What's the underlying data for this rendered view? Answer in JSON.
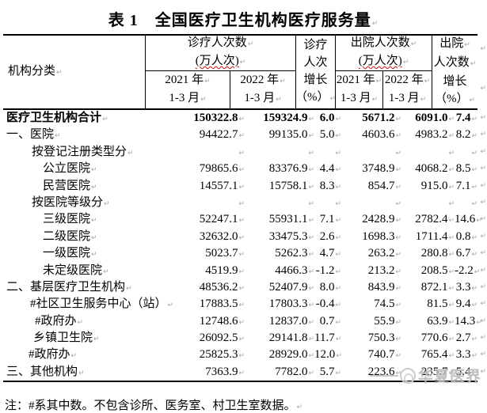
{
  "title": "表 1　全国医疗卫生机构医疗服务量",
  "header": {
    "institution": "机构分类",
    "outpatient_group": {
      "line1": "诊疗人次数",
      "line2": "(万人次)"
    },
    "outpatient_growth_lines": [
      "诊疗",
      "人次",
      "增长",
      "（%）"
    ],
    "discharge_group": {
      "line1": "出院人次数",
      "line2": "(万人次)"
    },
    "discharge_growth_lines": [
      "出院",
      "人次数",
      "增长",
      "（%）"
    ],
    "year2021": {
      "line1": "2021 年",
      "line2": "1-3 月"
    },
    "year2022": {
      "line1": "2022 年",
      "line2": "1-3 月"
    }
  },
  "rows": [
    {
      "label": "医疗卫生机构合计",
      "indent": 4,
      "bold": true,
      "values": [
        "150322.8",
        "159324.9",
        "6.0",
        "5671.2",
        "6091.0",
        "7.4"
      ]
    },
    {
      "label": "一、医院",
      "indent": 4,
      "bold": false,
      "values": [
        "94422.7",
        "99135.0",
        "5.0",
        "4603.6",
        "4983.2",
        "8.2"
      ]
    },
    {
      "label": "按登记注册类型分",
      "indent": 36,
      "bold": false,
      "values": [
        "",
        "",
        "",
        "",
        "",
        ""
      ]
    },
    {
      "label": "公立医院",
      "indent": 50,
      "bold": false,
      "values": [
        "79865.6",
        "83376.9",
        "4.4",
        "3748.9",
        "4068.2",
        "8.5"
      ]
    },
    {
      "label": "民营医院",
      "indent": 50,
      "bold": false,
      "values": [
        "14557.1",
        "15758.1",
        "8.3",
        "854.7",
        "915.0",
        "7.1"
      ]
    },
    {
      "label": "按医院等级分",
      "indent": 36,
      "bold": false,
      "values": [
        "",
        "",
        "",
        "",
        "",
        ""
      ]
    },
    {
      "label": "三级医院",
      "indent": 50,
      "bold": false,
      "values": [
        "52247.1",
        "55931.1",
        "7.1",
        "2428.9",
        "2782.4",
        "14.6"
      ]
    },
    {
      "label": "二级医院",
      "indent": 50,
      "bold": false,
      "values": [
        "32632.0",
        "33475.3",
        "2.6",
        "1698.3",
        "1711.4",
        "0.8"
      ]
    },
    {
      "label": "一级医院",
      "indent": 50,
      "bold": false,
      "values": [
        "5023.7",
        "5262.3",
        "4.7",
        "263.2",
        "280.8",
        "6.7"
      ]
    },
    {
      "label": "未定级医院",
      "indent": 50,
      "bold": false,
      "values": [
        "4519.9",
        "4466.3",
        "-1.2",
        "213.2",
        "208.5",
        "-2.2"
      ]
    },
    {
      "label": "二、基层医疗卫生机构",
      "indent": 4,
      "bold": false,
      "values": [
        "48536.2",
        "52407.9",
        "8.0",
        "843.9",
        "872.1",
        "3.3"
      ]
    },
    {
      "label": "#社区卫生服务中心（站）",
      "indent": 34,
      "bold": false,
      "values": [
        "17883.5",
        "17803.3",
        "-0.4",
        "74.5",
        "81.5",
        "9.4"
      ]
    },
    {
      "label": "#政府办",
      "indent": 40,
      "bold": false,
      "values": [
        "12748.6",
        "12837.0",
        "0.7",
        "55.9",
        "63.9",
        "14.3"
      ]
    },
    {
      "label": "乡镇卫生院",
      "indent": 38,
      "bold": false,
      "values": [
        "26092.5",
        "29141.8",
        "11.7",
        "750.3",
        "770.6",
        "2.7"
      ]
    },
    {
      "label": "#政府办",
      "indent": 32,
      "bold": false,
      "values": [
        "25825.3",
        "28929.0",
        "12.0",
        "740.7",
        "765.4",
        "3.3"
      ]
    },
    {
      "label": "三、其他机构",
      "indent": 4,
      "bold": false,
      "values": [
        "7363.9",
        "7782.0",
        "5.7",
        "223.6",
        "235.7",
        "5.4"
      ]
    }
  ],
  "note": "注：#系其中数。不包含诊所、医务室、村卫生室数据。",
  "watermark": "华夏医界",
  "marks": {
    "return_char": "↵"
  },
  "colors": {
    "squiggle": "#cc1111",
    "mark": "#a5a5a5",
    "watermark": "#bcbcbc",
    "border": "#000000"
  }
}
